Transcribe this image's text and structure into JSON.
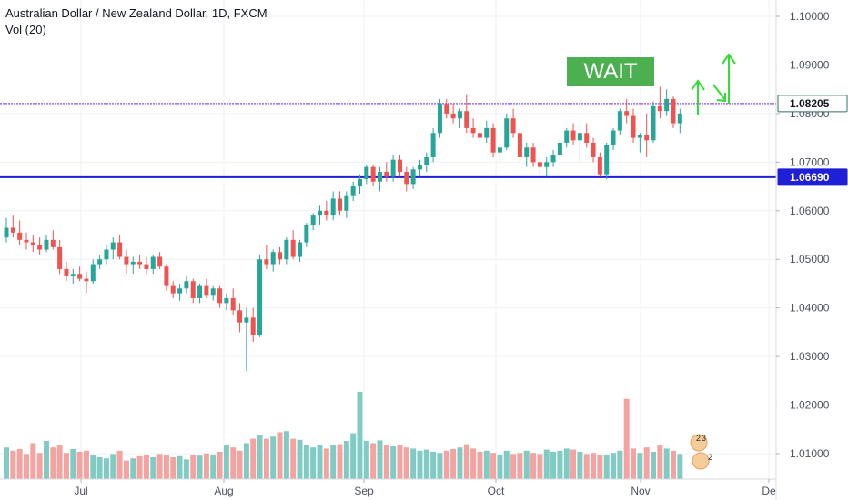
{
  "header": {
    "title": "Australian Dollar / New Zealand Dollar, 1D, FXCM",
    "indicator": "Vol (20)"
  },
  "annotation": {
    "text": "WAIT"
  },
  "colors": {
    "up": "#26a69a",
    "down": "#ef5350",
    "vol_up": "#80cbc4",
    "vol_down": "#f4a3a1",
    "support_line": "#1f1fd6",
    "resistance_line": "#9c6ade",
    "arrow": "#33dd33",
    "wait_bg": "#4caf50"
  },
  "chart_data": {
    "type": "candlestick",
    "y_axis_ticks": [
      "1.10000",
      "1.09000",
      "1.08000",
      "1.07000",
      "1.06000",
      "1.05000",
      "1.04000",
      "1.03000",
      "1.02000",
      "1.01000"
    ],
    "ylim": [
      1.0055,
      1.1035
    ],
    "x_axis_ticks": [
      "Jul",
      "Aug",
      "Sep",
      "Oct",
      "Nov",
      "De"
    ],
    "horizontal_lines": [
      {
        "label": "1.08205",
        "value": 1.08205,
        "color": "#9c6ade"
      },
      {
        "label": "1.06690",
        "value": 1.0669,
        "color": "#1f1fd6"
      }
    ],
    "ohlc": [
      [
        1.0545,
        1.0585,
        1.0535,
        1.0565
      ],
      [
        1.0565,
        1.059,
        1.0545,
        1.0555
      ],
      [
        1.0555,
        1.058,
        1.053,
        1.054
      ],
      [
        1.054,
        1.0555,
        1.052,
        1.0535
      ],
      [
        1.0535,
        1.055,
        1.0515,
        1.053
      ],
      [
        1.053,
        1.0545,
        1.051,
        1.052
      ],
      [
        1.052,
        1.055,
        1.0515,
        1.054
      ],
      [
        1.054,
        1.056,
        1.052,
        1.0525
      ],
      [
        1.0525,
        1.054,
        1.047,
        1.048
      ],
      [
        1.048,
        1.0495,
        1.0455,
        1.0465
      ],
      [
        1.0465,
        1.048,
        1.045,
        1.047
      ],
      [
        1.047,
        1.0485,
        1.0455,
        1.046
      ],
      [
        1.046,
        1.0475,
        1.043,
        1.0455
      ],
      [
        1.0455,
        1.05,
        1.045,
        1.049
      ],
      [
        1.049,
        1.051,
        1.048,
        1.05
      ],
      [
        1.05,
        1.053,
        1.049,
        1.052
      ],
      [
        1.052,
        1.0545,
        1.05,
        1.0535
      ],
      [
        1.0535,
        1.055,
        1.05,
        1.0505
      ],
      [
        1.0505,
        1.052,
        1.047,
        1.049
      ],
      [
        1.049,
        1.0505,
        1.047,
        1.0495
      ],
      [
        1.0495,
        1.051,
        1.048,
        1.049
      ],
      [
        1.049,
        1.0505,
        1.047,
        1.048
      ],
      [
        1.048,
        1.051,
        1.047,
        1.0505
      ],
      [
        1.0505,
        1.0515,
        1.048,
        1.0485
      ],
      [
        1.0485,
        1.049,
        1.0435,
        1.0445
      ],
      [
        1.0445,
        1.0455,
        1.042,
        1.043
      ],
      [
        1.043,
        1.045,
        1.0415,
        1.044
      ],
      [
        1.044,
        1.0465,
        1.043,
        1.0455
      ],
      [
        1.0455,
        1.046,
        1.041,
        1.042
      ],
      [
        1.042,
        1.045,
        1.041,
        1.0445
      ],
      [
        1.0445,
        1.046,
        1.042,
        1.0425
      ],
      [
        1.0425,
        1.0445,
        1.0415,
        1.044
      ],
      [
        1.044,
        1.0445,
        1.04,
        1.041
      ],
      [
        1.041,
        1.043,
        1.0395,
        1.042
      ],
      [
        1.042,
        1.044,
        1.0385,
        1.0395
      ],
      [
        1.0395,
        1.041,
        1.035,
        1.037
      ],
      [
        1.037,
        1.04,
        1.027,
        1.038
      ],
      [
        1.038,
        1.04,
        1.033,
        1.0345
      ],
      [
        1.0345,
        1.051,
        1.034,
        1.05
      ],
      [
        1.05,
        1.053,
        1.048,
        1.049
      ],
      [
        1.049,
        1.052,
        1.0475,
        1.0515
      ],
      [
        1.0515,
        1.0525,
        1.049,
        1.05
      ],
      [
        1.05,
        1.0545,
        1.049,
        1.054
      ],
      [
        1.054,
        1.056,
        1.05,
        1.0505
      ],
      [
        1.0505,
        1.054,
        1.0495,
        1.0535
      ],
      [
        1.0535,
        1.0575,
        1.0525,
        1.057
      ],
      [
        1.057,
        1.0595,
        1.056,
        1.059
      ],
      [
        1.059,
        1.061,
        1.057,
        1.06
      ],
      [
        1.06,
        1.062,
        1.058,
        1.059
      ],
      [
        1.059,
        1.064,
        1.058,
        1.0625
      ],
      [
        1.0625,
        1.064,
        1.059,
        1.06
      ],
      [
        1.06,
        1.064,
        1.0585,
        1.063
      ],
      [
        1.063,
        1.066,
        1.062,
        1.065
      ],
      [
        1.065,
        1.0675,
        1.0635,
        1.0665
      ],
      [
        1.0665,
        1.0695,
        1.0655,
        1.069
      ],
      [
        1.069,
        1.0695,
        1.065,
        1.066
      ],
      [
        1.066,
        1.069,
        1.064,
        1.068
      ],
      [
        1.068,
        1.07,
        1.066,
        1.067
      ],
      [
        1.067,
        1.0715,
        1.066,
        1.0705
      ],
      [
        1.0705,
        1.0715,
        1.067,
        1.068
      ],
      [
        1.068,
        1.069,
        1.064,
        1.0655
      ],
      [
        1.0655,
        1.069,
        1.0645,
        1.0685
      ],
      [
        1.0685,
        1.0705,
        1.067,
        1.0695
      ],
      [
        1.0695,
        1.072,
        1.068,
        1.071
      ],
      [
        1.071,
        1.077,
        1.07,
        1.076
      ],
      [
        1.076,
        1.083,
        1.075,
        1.082
      ],
      [
        1.082,
        1.083,
        1.079,
        1.08
      ],
      [
        1.08,
        1.082,
        1.078,
        1.079
      ],
      [
        1.079,
        1.081,
        1.077,
        1.0805
      ],
      [
        1.0805,
        1.084,
        1.076,
        1.077
      ],
      [
        1.077,
        1.079,
        1.075,
        1.076
      ],
      [
        1.076,
        1.0775,
        1.074,
        1.075
      ],
      [
        1.075,
        1.0785,
        1.074,
        1.077
      ],
      [
        1.077,
        1.078,
        1.071,
        1.072
      ],
      [
        1.072,
        1.074,
        1.07,
        1.073
      ],
      [
        1.073,
        1.08,
        1.0725,
        1.079
      ],
      [
        1.079,
        1.081,
        1.075,
        1.076
      ],
      [
        1.076,
        1.077,
        1.07,
        1.071
      ],
      [
        1.071,
        1.074,
        1.069,
        1.073
      ],
      [
        1.073,
        1.074,
        1.069,
        1.07
      ],
      [
        1.07,
        1.0715,
        1.0675,
        1.069
      ],
      [
        1.069,
        1.071,
        1.067,
        1.07
      ],
      [
        1.07,
        1.0725,
        1.069,
        1.0715
      ],
      [
        1.0715,
        1.0745,
        1.0705,
        1.074
      ],
      [
        1.074,
        1.077,
        1.073,
        1.0765
      ],
      [
        1.0765,
        1.078,
        1.0735,
        1.0745
      ],
      [
        1.0745,
        1.0775,
        1.07,
        1.076
      ],
      [
        1.076,
        1.078,
        1.073,
        1.074
      ],
      [
        1.074,
        1.075,
        1.07,
        1.071
      ],
      [
        1.071,
        1.072,
        1.067,
        1.0675
      ],
      [
        1.0675,
        1.074,
        1.0665,
        1.0735
      ],
      [
        1.0735,
        1.077,
        1.0725,
        1.0765
      ],
      [
        1.0765,
        1.081,
        1.0755,
        1.0805
      ],
      [
        1.0805,
        1.083,
        1.078,
        1.0795
      ],
      [
        1.0795,
        1.081,
        1.074,
        1.075
      ],
      [
        1.075,
        1.076,
        1.072,
        1.0755
      ],
      [
        1.0755,
        1.08,
        1.071,
        1.0745
      ],
      [
        1.0745,
        1.0825,
        1.074,
        1.0815
      ],
      [
        1.0815,
        1.0855,
        1.079,
        1.0805
      ],
      [
        1.0805,
        1.085,
        1.0795,
        1.083
      ],
      [
        1.083,
        1.0835,
        1.077,
        1.078
      ],
      [
        1.078,
        1.081,
        1.076,
        1.08
      ]
    ],
    "volume": [
      0.58,
      0.52,
      0.55,
      0.46,
      0.66,
      0.48,
      0.7,
      0.58,
      0.62,
      0.48,
      0.55,
      0.5,
      0.52,
      0.44,
      0.4,
      0.38,
      0.46,
      0.52,
      0.34,
      0.38,
      0.42,
      0.44,
      0.4,
      0.46,
      0.44,
      0.4,
      0.42,
      0.36,
      0.45,
      0.43,
      0.47,
      0.44,
      0.5,
      0.62,
      0.58,
      0.52,
      0.66,
      0.74,
      0.8,
      0.74,
      0.78,
      0.86,
      0.88,
      0.74,
      0.72,
      0.62,
      0.58,
      0.63,
      0.56,
      0.63,
      0.64,
      0.7,
      0.84,
      1.6,
      0.7,
      0.66,
      0.71,
      0.63,
      0.6,
      0.62,
      0.58,
      0.56,
      0.52,
      0.54,
      0.5,
      0.48,
      0.52,
      0.55,
      0.58,
      0.64,
      0.56,
      0.5,
      0.52,
      0.48,
      0.44,
      0.52,
      0.46,
      0.48,
      0.52,
      0.48,
      0.46,
      0.54,
      0.5,
      0.52,
      0.56,
      0.54,
      0.5,
      0.46,
      0.48,
      0.44,
      0.44,
      0.48,
      0.52,
      1.47,
      0.56,
      0.48,
      0.58,
      0.5,
      0.62,
      0.56,
      0.52,
      0.46
    ]
  }
}
